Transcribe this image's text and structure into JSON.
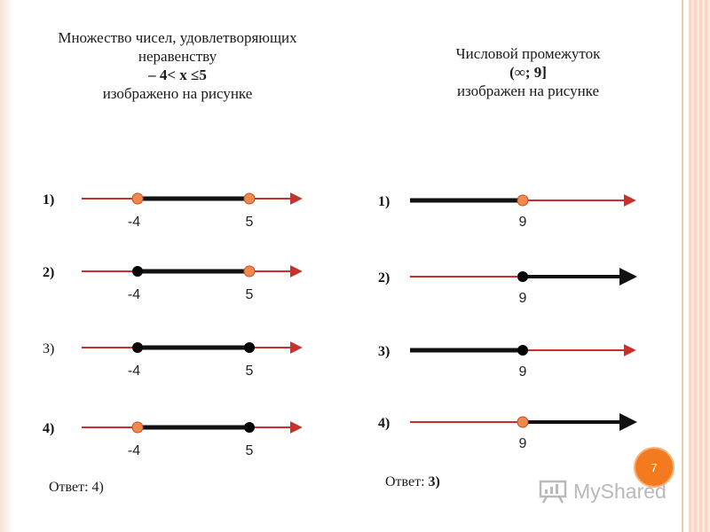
{
  "left_panel": {
    "title_lines": [
      "Множество чисел, удовлетворяющих",
      "неравенству"
    ],
    "inequality": "– 4< x ≤5",
    "title_tail": "изображено на рисунке",
    "answer_prefix": "Ответ:",
    "answer_value": "4)"
  },
  "right_panel": {
    "title_line1": "Числовой промежуток",
    "interval": "(∞; 9]",
    "title_tail": "изображен на рисунке",
    "answer_prefix": "Ответ:",
    "answer_value": "3)"
  },
  "number_lines": {
    "left": [
      {
        "label": "1)",
        "label_bold": true,
        "a": "-4",
        "b": "5",
        "a_point": "open",
        "b_point": "open",
        "shade": "between"
      },
      {
        "label": "2)",
        "label_bold": true,
        "a": "-4",
        "b": "5",
        "a_point": "closed",
        "b_point": "open",
        "shade": "between"
      },
      {
        "label": "3)",
        "label_bold": false,
        "a": "-4",
        "b": "5",
        "a_point": "closed",
        "b_point": "closed",
        "shade": "between"
      },
      {
        "label": "4)",
        "label_bold": true,
        "a": "-4",
        "b": "5",
        "a_point": "open",
        "b_point": "closed",
        "shade": "between"
      }
    ],
    "right": [
      {
        "label": "1)",
        "value": "9",
        "point": "open",
        "shade": "left"
      },
      {
        "label": "2)",
        "value": "9",
        "point": "closed",
        "shade": "right"
      },
      {
        "label": "3)",
        "value": "9",
        "point": "closed",
        "shade": "left"
      },
      {
        "label": "4)",
        "value": "9",
        "point": "open",
        "shade": "right"
      }
    ]
  },
  "colors": {
    "axis": "#c8302a",
    "shade": "#111111",
    "open_point": "#f08a4b",
    "open_point_stroke": "#c0502a",
    "closed_point": "#000000",
    "badge": "#f47a1f"
  },
  "page_number": "7",
  "watermark": {
    "text": "MyShared",
    "icon": "presentation-board-icon"
  }
}
